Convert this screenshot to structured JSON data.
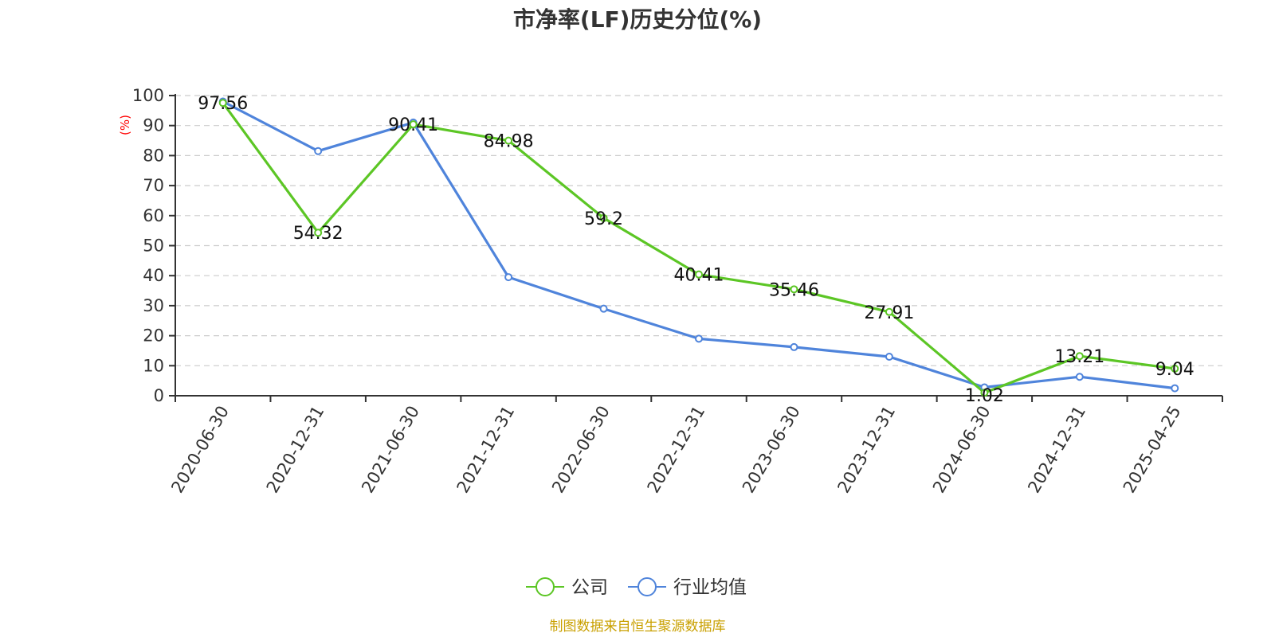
{
  "chart_data": {
    "type": "line",
    "title": "市净率(LF)历史分位(%)",
    "ylabel": "(%)",
    "categories": [
      "2020-06-30",
      "2020-12-31",
      "2021-06-30",
      "2021-12-31",
      "2022-06-30",
      "2022-12-31",
      "2023-06-30",
      "2023-12-31",
      "2024-06-30",
      "2024-12-31",
      "2025-04-25"
    ],
    "ylim": [
      0,
      100
    ],
    "yticks": [
      "0",
      "10",
      "20",
      "30",
      "40",
      "50",
      "60",
      "70",
      "80",
      "90",
      "100"
    ],
    "grid": true,
    "legend_position": "bottom-center",
    "series": [
      {
        "name": "公司",
        "color": "#5cc625",
        "values": [
          97.56,
          54.32,
          90.41,
          84.98,
          59.2,
          40.41,
          35.46,
          27.91,
          1.02,
          13.21,
          9.04
        ],
        "labels": [
          "97.56",
          "54.32",
          "90.41",
          "84.98",
          "59.2",
          "40.41",
          "35.46",
          "27.91",
          "1.02",
          "13.21",
          "9.04"
        ]
      },
      {
        "name": "行业均值",
        "color": "#4f84db",
        "values": [
          98.0,
          81.5,
          91.0,
          39.5,
          29.0,
          19.0,
          16.2,
          13.0,
          2.8,
          6.3,
          2.5
        ]
      }
    ]
  },
  "colors": {
    "axis_unit": "#ff0000",
    "source": "#c9a000",
    "text": "#333333"
  },
  "source_text": "制图数据来自恒生聚源数据库"
}
